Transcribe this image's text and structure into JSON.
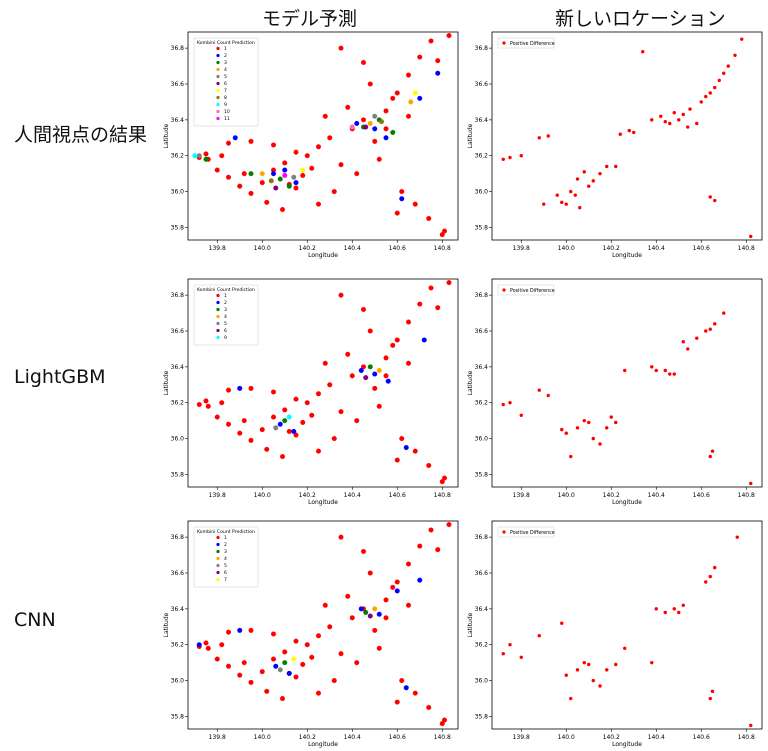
{
  "column_titles": [
    "モデル予測",
    "新しいロケーション"
  ],
  "row_titles": [
    "人間視点の結果",
    "LightGBM",
    "CNN"
  ],
  "colors": {
    "1": "#ff0000",
    "2": "#0000ff",
    "3": "#008000",
    "4": "#ffa500",
    "5": "#808080",
    "6": "#800080",
    "7": "#ffff00",
    "8": "#808000",
    "9": "#00ffff",
    "10": "#ff69b4",
    "11": "#ff00ff",
    "positive": "#ff0000"
  },
  "chart_data": [
    {
      "type": "scatter",
      "xlabel": "Longitude",
      "ylabel": "Latitude",
      "xticks": [
        "139.8",
        "140.0",
        "140.2",
        "140.4",
        "140.6",
        "140.8"
      ],
      "yticks": [
        "35.8",
        "36.0",
        "36.2",
        "36.4",
        "36.6",
        "36.8"
      ],
      "xlim": [
        139.67,
        140.87
      ],
      "ylim": [
        35.73,
        36.89
      ],
      "legend_title": "Kombini Count Prediction",
      "legend_placement": "top-left",
      "legend": [
        "1",
        "2",
        "3",
        "4",
        "5",
        "6",
        "7",
        "8",
        "9",
        "10",
        "11"
      ],
      "series": [
        {
          "name": "1",
          "x": [
            139.72,
            139.76,
            139.8,
            139.85,
            139.9,
            139.95,
            140.0,
            140.05,
            140.1,
            140.15,
            140.2,
            140.25,
            140.3,
            140.35,
            140.4,
            140.45,
            140.5,
            140.55,
            140.6,
            140.65,
            140.7,
            140.75,
            140.8,
            140.83,
            139.75,
            139.85,
            139.95,
            140.05,
            140.12,
            140.18,
            140.22,
            140.28,
            140.38,
            140.48,
            140.58,
            140.68,
            140.74,
            140.81,
            140.02,
            140.09,
            140.32,
            140.42,
            140.52,
            140.62,
            139.82,
            139.92,
            140.15,
            140.45,
            140.55,
            140.65,
            140.78,
            140.35,
            140.25,
            140.6
          ],
          "y": [
            36.19,
            36.18,
            36.12,
            36.08,
            36.03,
            35.99,
            36.05,
            36.12,
            36.16,
            36.02,
            36.2,
            36.25,
            36.3,
            36.15,
            36.35,
            36.4,
            36.28,
            36.45,
            36.55,
            36.65,
            36.75,
            36.84,
            35.76,
            36.87,
            36.21,
            36.27,
            36.28,
            36.26,
            36.04,
            36.09,
            36.13,
            36.42,
            36.47,
            36.6,
            36.52,
            35.93,
            35.85,
            35.78,
            35.94,
            35.9,
            36.0,
            36.1,
            36.18,
            36.0,
            36.2,
            36.1,
            36.22,
            36.72,
            36.35,
            36.42,
            36.73,
            36.8,
            35.93,
            35.88
          ]
        },
        {
          "name": "2",
          "x": [
            139.88,
            140.05,
            140.15,
            140.42,
            140.5,
            140.55,
            140.62,
            140.7,
            140.78,
            140.1
          ],
          "y": [
            36.3,
            36.1,
            36.05,
            36.38,
            36.35,
            36.3,
            35.96,
            36.52,
            36.66,
            36.12
          ]
        },
        {
          "name": "3",
          "x": [
            139.75,
            139.95,
            140.08,
            140.12,
            140.45,
            140.52,
            140.58
          ],
          "y": [
            36.18,
            36.1,
            36.07,
            36.03,
            36.36,
            36.4,
            36.33
          ]
        },
        {
          "name": "4",
          "x": [
            140.0,
            140.48,
            140.66
          ],
          "y": [
            36.1,
            36.38,
            36.5
          ]
        },
        {
          "name": "5",
          "x": [
            139.72,
            140.14,
            140.5
          ],
          "y": [
            36.2,
            36.08,
            36.42
          ]
        },
        {
          "name": "6",
          "x": [
            140.06,
            140.46
          ],
          "y": [
            36.02,
            36.36
          ]
        },
        {
          "name": "7",
          "x": [
            140.18,
            140.68
          ],
          "y": [
            36.12,
            36.55
          ]
        },
        {
          "name": "8",
          "x": [
            140.04,
            140.53
          ],
          "y": [
            36.06,
            36.39
          ]
        },
        {
          "name": "9",
          "x": [
            139.7
          ],
          "y": [
            36.2
          ]
        },
        {
          "name": "10",
          "x": [
            140.4
          ],
          "y": [
            36.36
          ]
        },
        {
          "name": "11",
          "x": [
            140.1
          ],
          "y": [
            36.09
          ]
        }
      ]
    },
    {
      "type": "scatter",
      "xlabel": "Longitude",
      "ylabel": "Latitude",
      "xticks": [
        "139.8",
        "140.0",
        "140.2",
        "140.4",
        "140.6",
        "140.8"
      ],
      "yticks": [
        "35.8",
        "36.0",
        "36.2",
        "36.4",
        "36.6",
        "36.8"
      ],
      "xlim": [
        139.67,
        140.87
      ],
      "ylim": [
        35.73,
        36.89
      ],
      "legend_placement": "top-left",
      "legend": [
        "Positive Difference"
      ],
      "series": [
        {
          "name": "Positive Difference",
          "x": [
            139.72,
            139.75,
            139.8,
            139.88,
            139.92,
            139.96,
            140.0,
            140.04,
            140.06,
            140.1,
            140.12,
            140.15,
            140.18,
            140.22,
            140.05,
            140.02,
            139.98,
            140.08,
            140.38,
            140.42,
            140.46,
            140.48,
            140.5,
            140.52,
            140.55,
            140.58,
            140.6,
            140.62,
            140.64,
            140.66,
            140.68,
            140.7,
            140.72,
            140.75,
            140.78,
            140.82,
            140.64,
            140.66,
            140.34,
            140.24,
            140.28,
            140.3,
            139.9,
            140.44,
            140.54
          ],
          "y": [
            36.18,
            36.19,
            36.2,
            36.3,
            36.31,
            35.98,
            35.93,
            35.98,
            35.91,
            36.03,
            36.06,
            36.1,
            36.14,
            36.14,
            36.07,
            36.0,
            35.94,
            36.11,
            36.4,
            36.42,
            36.38,
            36.44,
            36.4,
            36.43,
            36.46,
            36.38,
            36.5,
            36.53,
            36.55,
            36.58,
            36.62,
            36.66,
            36.7,
            36.76,
            36.85,
            35.75,
            35.97,
            35.95,
            36.78,
            36.32,
            36.34,
            36.33,
            35.93,
            36.39,
            36.36
          ]
        }
      ]
    },
    {
      "type": "scatter",
      "xlabel": "Longitude",
      "ylabel": "Latitude",
      "xticks": [
        "139.8",
        "140.0",
        "140.2",
        "140.4",
        "140.6",
        "140.8"
      ],
      "yticks": [
        "35.8",
        "36.0",
        "36.2",
        "36.4",
        "36.6",
        "36.8"
      ],
      "xlim": [
        139.67,
        140.87
      ],
      "ylim": [
        35.73,
        36.89
      ],
      "legend_title": "Kombini Count Prediction",
      "legend_placement": "top-left",
      "legend": [
        "1",
        "2",
        "3",
        "4",
        "5",
        "6",
        "9"
      ],
      "series": [
        {
          "name": "1",
          "x": [
            139.72,
            139.76,
            139.8,
            139.85,
            139.9,
            139.95,
            140.0,
            140.05,
            140.1,
            140.15,
            140.2,
            140.25,
            140.3,
            140.35,
            140.4,
            140.45,
            140.5,
            140.55,
            140.6,
            140.65,
            140.7,
            140.75,
            140.8,
            140.83,
            139.75,
            139.85,
            139.95,
            140.05,
            140.12,
            140.18,
            140.22,
            140.28,
            140.38,
            140.48,
            140.58,
            140.68,
            140.74,
            140.81,
            140.02,
            140.09,
            140.32,
            140.42,
            140.52,
            140.62,
            139.82,
            139.92,
            140.15,
            140.45,
            140.55,
            140.65,
            140.78,
            140.35,
            140.25,
            140.6
          ],
          "y": [
            36.19,
            36.18,
            36.12,
            36.08,
            36.03,
            35.99,
            36.05,
            36.12,
            36.16,
            36.02,
            36.2,
            36.25,
            36.3,
            36.15,
            36.35,
            36.4,
            36.28,
            36.45,
            36.55,
            36.65,
            36.75,
            36.84,
            35.76,
            36.87,
            36.21,
            36.27,
            36.28,
            36.26,
            36.04,
            36.09,
            36.13,
            36.42,
            36.47,
            36.6,
            36.52,
            35.93,
            35.85,
            35.78,
            35.94,
            35.9,
            36.0,
            36.1,
            36.18,
            36.0,
            36.2,
            36.1,
            36.22,
            36.72,
            36.35,
            36.42,
            36.73,
            36.8,
            35.93,
            35.88
          ]
        },
        {
          "name": "2",
          "x": [
            139.9,
            140.08,
            140.14,
            140.44,
            140.5,
            140.56,
            140.64,
            140.72
          ],
          "y": [
            36.28,
            36.08,
            36.04,
            36.38,
            36.36,
            36.32,
            35.95,
            36.55
          ]
        },
        {
          "name": "3",
          "x": [
            140.1,
            140.48
          ],
          "y": [
            36.1,
            36.4
          ]
        },
        {
          "name": "4",
          "x": [
            140.52
          ],
          "y": [
            36.38
          ]
        },
        {
          "name": "5",
          "x": [
            140.06
          ],
          "y": [
            36.06
          ]
        },
        {
          "name": "6",
          "x": [
            140.46
          ],
          "y": [
            36.34
          ]
        },
        {
          "name": "9",
          "x": [
            140.12
          ],
          "y": [
            36.12
          ]
        }
      ]
    },
    {
      "type": "scatter",
      "xlabel": "Longitude",
      "ylabel": "Latitude",
      "xticks": [
        "139.8",
        "140.0",
        "140.2",
        "140.4",
        "140.6",
        "140.8"
      ],
      "yticks": [
        "35.8",
        "36.0",
        "36.2",
        "36.4",
        "36.6",
        "36.8"
      ],
      "xlim": [
        139.67,
        140.87
      ],
      "ylim": [
        35.73,
        36.89
      ],
      "legend_placement": "top-left",
      "legend": [
        "Positive Difference"
      ],
      "series": [
        {
          "name": "Positive Difference",
          "x": [
            139.72,
            139.75,
            139.8,
            139.88,
            139.92,
            139.98,
            140.0,
            140.05,
            140.08,
            140.1,
            140.12,
            140.15,
            140.18,
            140.22,
            140.26,
            140.38,
            140.4,
            140.44,
            140.46,
            140.48,
            140.52,
            140.54,
            140.58,
            140.62,
            140.64,
            140.66,
            140.7,
            140.65,
            140.64,
            140.82,
            140.02,
            140.2
          ],
          "y": [
            36.19,
            36.2,
            36.13,
            36.27,
            36.24,
            36.05,
            36.03,
            36.06,
            36.1,
            36.09,
            36.0,
            35.97,
            36.06,
            36.09,
            36.38,
            36.4,
            36.38,
            36.38,
            36.36,
            36.36,
            36.54,
            36.5,
            36.56,
            36.6,
            36.61,
            36.64,
            36.7,
            35.93,
            35.9,
            35.75,
            35.9,
            36.12
          ]
        }
      ]
    },
    {
      "type": "scatter",
      "xlabel": "Longitude",
      "ylabel": "Latitude",
      "xticks": [
        "139.8",
        "140.0",
        "140.2",
        "140.4",
        "140.6",
        "140.8"
      ],
      "yticks": [
        "35.8",
        "36.0",
        "36.2",
        "36.4",
        "36.6",
        "36.8"
      ],
      "xlim": [
        139.67,
        140.87
      ],
      "ylim": [
        35.73,
        36.89
      ],
      "legend_title": "Kombini Count Prediction",
      "legend_placement": "top-left",
      "legend": [
        "1",
        "2",
        "3",
        "4",
        "5",
        "6",
        "7"
      ],
      "series": [
        {
          "name": "1",
          "x": [
            139.72,
            139.76,
            139.8,
            139.85,
            139.9,
            139.95,
            140.0,
            140.05,
            140.1,
            140.15,
            140.2,
            140.25,
            140.3,
            140.35,
            140.4,
            140.45,
            140.5,
            140.55,
            140.6,
            140.65,
            140.7,
            140.75,
            140.8,
            140.83,
            139.75,
            139.85,
            139.95,
            140.05,
            140.12,
            140.18,
            140.22,
            140.28,
            140.38,
            140.48,
            140.58,
            140.68,
            140.74,
            140.81,
            140.02,
            140.09,
            140.32,
            140.42,
            140.52,
            140.62,
            139.82,
            139.92,
            140.15,
            140.45,
            140.55,
            140.65,
            140.78,
            140.35,
            140.25,
            140.6
          ],
          "y": [
            36.19,
            36.18,
            36.12,
            36.08,
            36.03,
            35.99,
            36.05,
            36.12,
            36.16,
            36.02,
            36.2,
            36.25,
            36.3,
            36.15,
            36.35,
            36.4,
            36.28,
            36.45,
            36.55,
            36.65,
            36.75,
            36.84,
            35.76,
            36.87,
            36.21,
            36.27,
            36.28,
            36.26,
            36.04,
            36.09,
            36.13,
            36.42,
            36.47,
            36.6,
            36.52,
            35.93,
            35.85,
            35.78,
            35.94,
            35.9,
            36.0,
            36.1,
            36.18,
            36.0,
            36.2,
            36.1,
            36.22,
            36.72,
            36.35,
            36.42,
            36.73,
            36.8,
            35.93,
            35.88
          ]
        },
        {
          "name": "2",
          "x": [
            139.72,
            139.9,
            140.06,
            140.12,
            140.44,
            140.52,
            140.6,
            140.64,
            140.7
          ],
          "y": [
            36.2,
            36.28,
            36.08,
            36.04,
            36.4,
            36.37,
            36.5,
            35.96,
            36.56
          ]
        },
        {
          "name": "3",
          "x": [
            140.1,
            140.46
          ],
          "y": [
            36.1,
            36.38
          ]
        },
        {
          "name": "4",
          "x": [
            140.5
          ],
          "y": [
            36.4
          ]
        },
        {
          "name": "5",
          "x": [
            140.08
          ],
          "y": [
            36.06
          ]
        },
        {
          "name": "6",
          "x": [
            140.48
          ],
          "y": [
            36.36
          ]
        },
        {
          "name": "7",
          "x": [
            140.14
          ],
          "y": [
            36.12
          ]
        }
      ]
    },
    {
      "type": "scatter",
      "xlabel": "Longitude",
      "ylabel": "Latitude",
      "xticks": [
        "139.8",
        "140.0",
        "140.2",
        "140.4",
        "140.6",
        "140.8"
      ],
      "yticks": [
        "35.8",
        "36.0",
        "36.2",
        "36.4",
        "36.6",
        "36.8"
      ],
      "xlim": [
        139.67,
        140.87
      ],
      "ylim": [
        35.73,
        36.89
      ],
      "legend_placement": "top-left",
      "legend": [
        "Positive Difference"
      ],
      "series": [
        {
          "name": "Positive Difference",
          "x": [
            139.72,
            139.75,
            139.8,
            139.88,
            139.98,
            140.0,
            140.05,
            140.08,
            140.1,
            140.12,
            140.15,
            140.18,
            140.22,
            140.26,
            140.38,
            140.4,
            140.44,
            140.48,
            140.5,
            140.52,
            140.62,
            140.64,
            140.66,
            140.76,
            140.65,
            140.64,
            140.82,
            140.02
          ],
          "y": [
            36.15,
            36.2,
            36.13,
            36.25,
            36.32,
            36.03,
            36.06,
            36.1,
            36.09,
            36.0,
            35.97,
            36.06,
            36.09,
            36.18,
            36.1,
            36.4,
            36.38,
            36.4,
            36.38,
            36.42,
            36.55,
            36.58,
            36.63,
            36.8,
            35.94,
            35.9,
            35.75,
            35.9
          ]
        }
      ]
    }
  ]
}
